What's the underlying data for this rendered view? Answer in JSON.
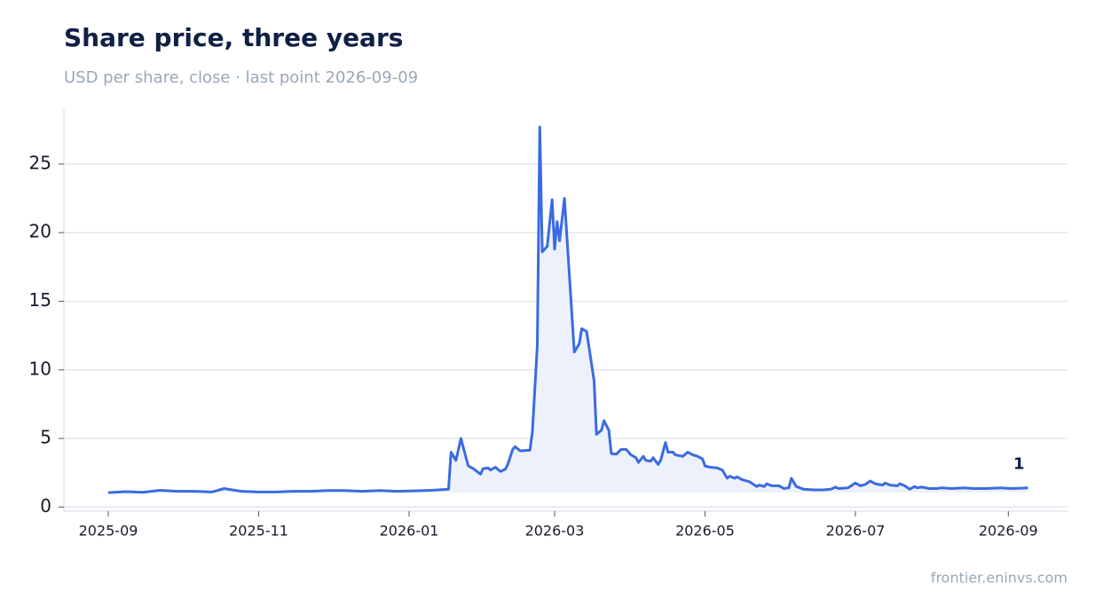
{
  "chart_data": {
    "type": "line",
    "title": "Share price, three years",
    "subtitle": "USD per share, close · last point 2026-09-09",
    "source": "frontier.eninvs.com",
    "color": "#3b6be0",
    "fill_color": "#edf1fc",
    "x": [
      "2025-09-01",
      "2025-09-08",
      "2025-09-15",
      "2025-09-22",
      "2025-09-29",
      "2025-10-06",
      "2025-10-13",
      "2025-10-18",
      "2025-10-25",
      "2025-11-01",
      "2025-11-08",
      "2025-11-15",
      "2025-11-22",
      "2025-11-29",
      "2025-12-06",
      "2025-12-13",
      "2025-12-20",
      "2025-12-27",
      "2026-01-03",
      "2026-01-10",
      "2026-01-17",
      "2026-01-18",
      "2026-01-20",
      "2026-01-22",
      "2026-01-25",
      "2026-01-27",
      "2026-01-30",
      "2026-01-31",
      "2026-02-02",
      "2026-02-03",
      "2026-02-05",
      "2026-02-07",
      "2026-02-09",
      "2026-02-10",
      "2026-02-12",
      "2026-02-13",
      "2026-02-15",
      "2026-02-19",
      "2026-02-20",
      "2026-02-22",
      "2026-02-23",
      "2026-02-24",
      "2026-02-26",
      "2026-02-28",
      "2026-03-01",
      "2026-03-02",
      "2026-03-03",
      "2026-03-05",
      "2026-03-09",
      "2026-03-11",
      "2026-03-12",
      "2026-03-14",
      "2026-03-17",
      "2026-03-18",
      "2026-03-20",
      "2026-03-21",
      "2026-03-23",
      "2026-03-24",
      "2026-03-26",
      "2026-03-28",
      "2026-03-30",
      "2026-04-01",
      "2026-04-03",
      "2026-04-04",
      "2026-04-06",
      "2026-04-07",
      "2026-04-09",
      "2026-04-10",
      "2026-04-12",
      "2026-04-13",
      "2026-04-15",
      "2026-04-16",
      "2026-04-18",
      "2026-04-19",
      "2026-04-22",
      "2026-04-24",
      "2026-04-26",
      "2026-04-28",
      "2026-04-30",
      "2026-05-01",
      "2026-05-03",
      "2026-05-06",
      "2026-05-08",
      "2026-05-10",
      "2026-05-11",
      "2026-05-13",
      "2026-05-14",
      "2026-05-16",
      "2026-05-19",
      "2026-05-22",
      "2026-05-23",
      "2026-05-25",
      "2026-05-26",
      "2026-05-28",
      "2026-05-31",
      "2026-06-02",
      "2026-06-04",
      "2026-06-05",
      "2026-06-07",
      "2026-06-10",
      "2026-06-14",
      "2026-06-18",
      "2026-06-21",
      "2026-06-23",
      "2026-06-24",
      "2026-06-28",
      "2026-07-01",
      "2026-07-03",
      "2026-07-05",
      "2026-07-07",
      "2026-07-09",
      "2026-07-12",
      "2026-07-13",
      "2026-07-15",
      "2026-07-18",
      "2026-07-19",
      "2026-07-21",
      "2026-07-23",
      "2026-07-25",
      "2026-07-26",
      "2026-07-28",
      "2026-07-31",
      "2026-08-03",
      "2026-08-05",
      "2026-08-09",
      "2026-08-14",
      "2026-08-18",
      "2026-08-23",
      "2026-08-29",
      "2026-09-02",
      "2026-09-09"
    ],
    "values": [
      1.05,
      1.12,
      1.08,
      1.22,
      1.15,
      1.15,
      1.1,
      1.35,
      1.15,
      1.1,
      1.1,
      1.15,
      1.15,
      1.2,
      1.2,
      1.15,
      1.2,
      1.15,
      1.18,
      1.22,
      1.3,
      4.0,
      3.4,
      5.0,
      3.0,
      2.8,
      2.4,
      2.8,
      2.85,
      2.7,
      2.9,
      2.6,
      2.75,
      3.1,
      4.2,
      4.4,
      4.1,
      4.15,
      5.5,
      11.8,
      27.7,
      18.6,
      19.0,
      22.4,
      18.8,
      20.8,
      19.4,
      22.5,
      11.3,
      11.9,
      13.0,
      12.8,
      9.2,
      5.3,
      5.6,
      6.3,
      5.6,
      3.9,
      3.85,
      4.2,
      4.2,
      3.8,
      3.6,
      3.25,
      3.7,
      3.4,
      3.35,
      3.6,
      3.1,
      3.4,
      4.7,
      4.0,
      4.0,
      3.8,
      3.7,
      4.0,
      3.8,
      3.7,
      3.5,
      3.0,
      2.9,
      2.85,
      2.7,
      2.1,
      2.25,
      2.1,
      2.2,
      2.0,
      1.85,
      1.5,
      1.6,
      1.5,
      1.7,
      1.55,
      1.55,
      1.35,
      1.4,
      2.1,
      1.5,
      1.3,
      1.25,
      1.25,
      1.3,
      1.45,
      1.35,
      1.4,
      1.75,
      1.55,
      1.65,
      1.9,
      1.7,
      1.6,
      1.75,
      1.6,
      1.55,
      1.7,
      1.55,
      1.3,
      1.5,
      1.4,
      1.45,
      1.35,
      1.35,
      1.4,
      1.35,
      1.4,
      1.35,
      1.35,
      1.4,
      1.35,
      1.4
    ],
    "value_labels": [
      null,
      null,
      null,
      null,
      null,
      null,
      null,
      null,
      null,
      null,
      null,
      null,
      null,
      null,
      null,
      null,
      null,
      null,
      null,
      null,
      null,
      null,
      null,
      null,
      null,
      null,
      null,
      null,
      null,
      null,
      null,
      null,
      null,
      null,
      null,
      null,
      null,
      null,
      null,
      null,
      null,
      null,
      null,
      null,
      null,
      null,
      null,
      null,
      null,
      null,
      null,
      null,
      null,
      null,
      null,
      null,
      null,
      null,
      null,
      null,
      null,
      null,
      null,
      null,
      null,
      null,
      null,
      null,
      null,
      null,
      null,
      null,
      null,
      null,
      null,
      null,
      null,
      null,
      null,
      null,
      null,
      null,
      null,
      null,
      null,
      null,
      null,
      null,
      null,
      null,
      null,
      null,
      null,
      null,
      null,
      null,
      null,
      null,
      null,
      null,
      null,
      null,
      null,
      null,
      null,
      null,
      null,
      null,
      null,
      null,
      null,
      null,
      null,
      null,
      null,
      null,
      null,
      null,
      null,
      null,
      null,
      null,
      null,
      null,
      null,
      null,
      null,
      null,
      null,
      null,
      "1"
    ],
    "xlim": [
      "2025-08-14",
      "2026-09-25"
    ],
    "xticks": [
      {
        "value": "2025-09-01",
        "label": "2025-09"
      },
      {
        "value": "2025-11-01",
        "label": "2025-11"
      },
      {
        "value": "2026-01-01",
        "label": "2026-01"
      },
      {
        "value": "2026-03-01",
        "label": "2026-03"
      },
      {
        "value": "2026-05-01",
        "label": "2026-05"
      },
      {
        "value": "2026-07-01",
        "label": "2026-07"
      },
      {
        "value": "2026-09-01",
        "label": "2026-09"
      }
    ],
    "ylim": [
      -0.3,
      29
    ],
    "yticks": [
      0,
      5,
      10,
      15,
      20,
      25
    ],
    "grid": true
  }
}
